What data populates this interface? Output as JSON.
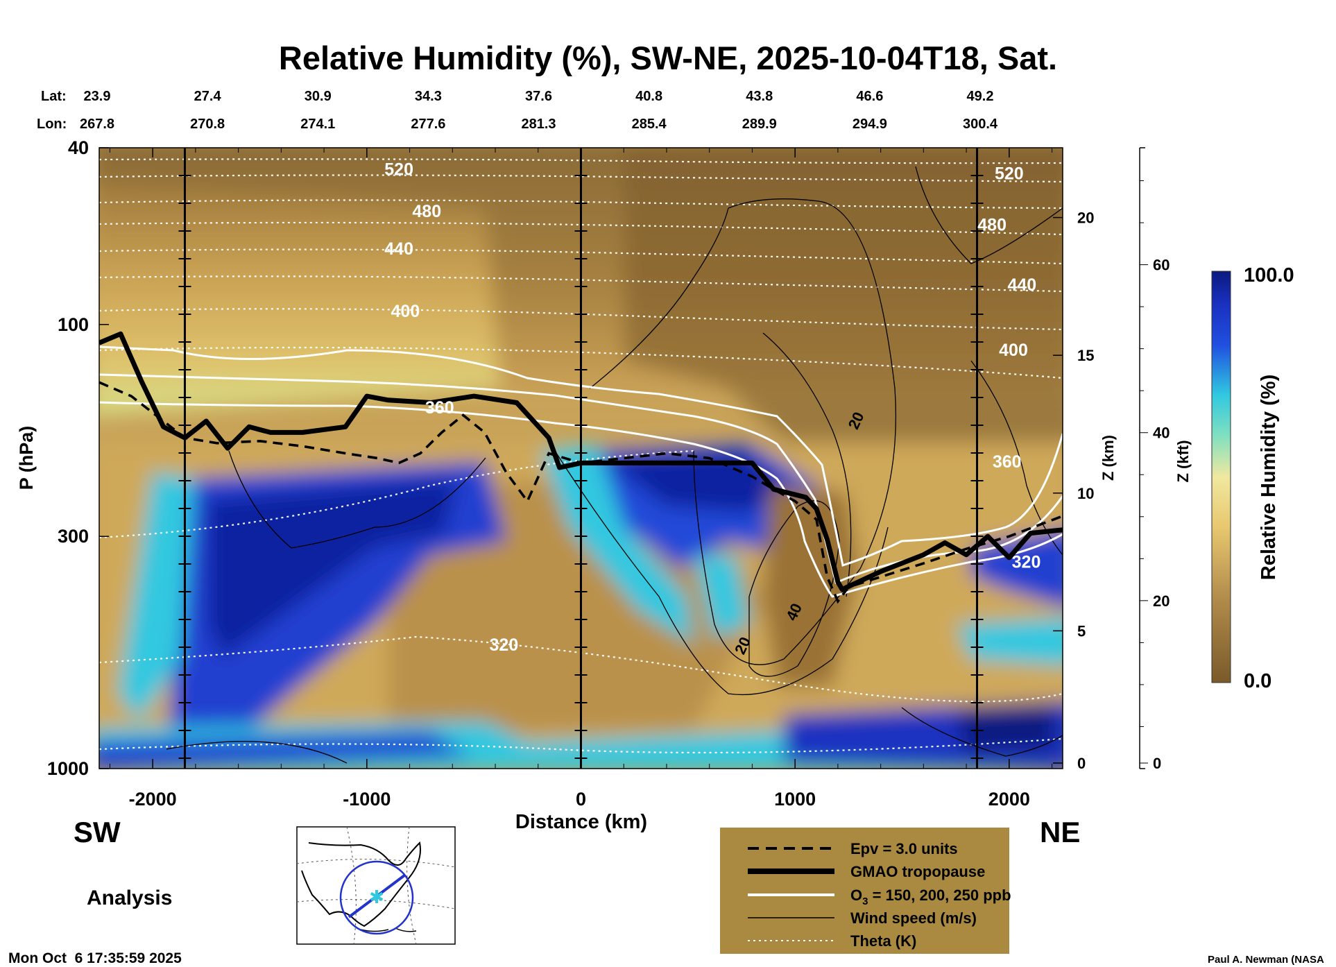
{
  "chart_data": {
    "type": "heatmap",
    "title": "Relative Humidity (%), SW-NE, 2025-10-04T18, Sat.",
    "xlabel": "Distance (km)",
    "ylabel": "P (hPa)",
    "y2label": "Z (km)",
    "y3label": "Z (kft)",
    "xlim": [
      -2250,
      2250
    ],
    "ylim_hpa": [
      1000,
      40
    ],
    "x_ticks": [
      -2000,
      -1000,
      0,
      1000,
      2000
    ],
    "p_ticks": [
      40,
      100,
      300,
      1000
    ],
    "z_km_ticks": [
      0,
      5,
      10,
      15,
      20
    ],
    "z_kft_ticks": [
      0,
      20,
      40,
      60
    ],
    "lat_label": "Lat:",
    "lon_label": "Lon:",
    "lat_lon_ticks": [
      {
        "lat": "23.9",
        "lon": "267.8"
      },
      {
        "lat": "27.4",
        "lon": "270.8"
      },
      {
        "lat": "30.9",
        "lon": "274.1"
      },
      {
        "lat": "34.3",
        "lon": "277.6"
      },
      {
        "lat": "37.6",
        "lon": "281.3"
      },
      {
        "lat": "40.8",
        "lon": "285.4"
      },
      {
        "lat": "43.8",
        "lon": "289.9"
      },
      {
        "lat": "46.6",
        "lon": "294.9"
      },
      {
        "lat": "49.2",
        "lon": "300.4"
      }
    ],
    "vertical_markers_km": [
      -1850,
      0,
      1850
    ],
    "theta_labels": [
      {
        "value": "520",
        "x_km": -850,
        "p": 45
      },
      {
        "value": "480",
        "x_km": -720,
        "p": 56
      },
      {
        "value": "440",
        "x_km": -850,
        "p": 68
      },
      {
        "value": "400",
        "x_km": -820,
        "p": 94
      },
      {
        "value": "360",
        "x_km": -660,
        "p": 155
      },
      {
        "value": "320",
        "x_km": -360,
        "p": 530
      },
      {
        "value": "520",
        "x_km": 2000,
        "p": 46
      },
      {
        "value": "480",
        "x_km": 1920,
        "p": 60
      },
      {
        "value": "440",
        "x_km": 2060,
        "p": 82
      },
      {
        "value": "400",
        "x_km": 2020,
        "p": 115
      },
      {
        "value": "360",
        "x_km": 1990,
        "p": 205
      },
      {
        "value": "320",
        "x_km": 2080,
        "p": 345
      }
    ],
    "wind_labels": [
      {
        "value": "20",
        "x_km": 1290,
        "p": 165
      },
      {
        "value": "40",
        "x_km": 1000,
        "p": 445
      },
      {
        "value": "20",
        "x_km": 760,
        "p": 530
      }
    ],
    "tropopause_gmao": {
      "x_km": [
        -2250,
        -2150,
        -2050,
        -1950,
        -1850,
        -1750,
        -1650,
        -1550,
        -1450,
        -1300,
        -1100,
        -1000,
        -900,
        -700,
        -500,
        -300,
        -150,
        -100,
        0,
        200,
        400,
        600,
        800,
        900,
        1050,
        1100,
        1150,
        1200,
        1220,
        1400,
        1600,
        1700,
        1800,
        1900,
        2000,
        2100,
        2250
      ],
      "p_hpa": [
        110,
        105,
        135,
        170,
        180,
        165,
        190,
        170,
        175,
        175,
        170,
        145,
        148,
        150,
        145,
        150,
        180,
        210,
        205,
        205,
        205,
        205,
        205,
        235,
        245,
        260,
        305,
        380,
        395,
        360,
        330,
        310,
        330,
        300,
        335,
        295,
        290
      ]
    },
    "epv_3": {
      "x_km": [
        -2250,
        -2100,
        -1950,
        -1850,
        -1700,
        -1500,
        -1300,
        -1100,
        -950,
        -850,
        -750,
        -650,
        -550,
        -450,
        -350,
        -250,
        -150,
        0,
        200,
        400,
        600,
        800,
        900,
        1000,
        1100,
        1150,
        1200,
        1250,
        1400,
        1600,
        1800,
        2000,
        2250
      ],
      "p_hpa": [
        135,
        145,
        165,
        180,
        185,
        183,
        188,
        195,
        200,
        205,
        195,
        175,
        160,
        175,
        215,
        250,
        195,
        205,
        200,
        195,
        200,
        220,
        235,
        250,
        275,
        370,
        420,
        390,
        370,
        345,
        320,
        300,
        270
      ]
    },
    "o3_contours_ppb": [
      "150",
      "200",
      "250"
    ],
    "rh_scale": {
      "min": "0.0",
      "max": "100.0",
      "label": "Relative Humidity (%)"
    },
    "side_labels": {
      "left": "SW",
      "right": "NE"
    },
    "analysis_label": "Analysis",
    "legend": [
      {
        "label": "Epv = 3.0 units",
        "style": "dashed-black"
      },
      {
        "label": "GMAO tropopause",
        "style": "thick-black"
      },
      {
        "label": "O3 = 150, 200, 250 ppb",
        "style": "white",
        "main": "O",
        "sub": "3",
        "rest": " = 150, 200, 250 ppb"
      },
      {
        "label": "Wind speed (m/s)",
        "style": "thin-black"
      },
      {
        "label": "Theta (K)",
        "style": "dotted-white"
      }
    ],
    "timestamp": "Mon Oct  6 17:35:59 2025",
    "credit": "Paul A. Newman (NASA"
  },
  "colors": {
    "brown_dark": "#8a6a36",
    "brown_mid": "#b08a4a",
    "tan": "#d8b060",
    "yellow": "#e8d078",
    "cyan": "#30c8e0",
    "blue": "#2040d0",
    "navy": "#1020a0",
    "legend_bg": "#aa8a40"
  }
}
